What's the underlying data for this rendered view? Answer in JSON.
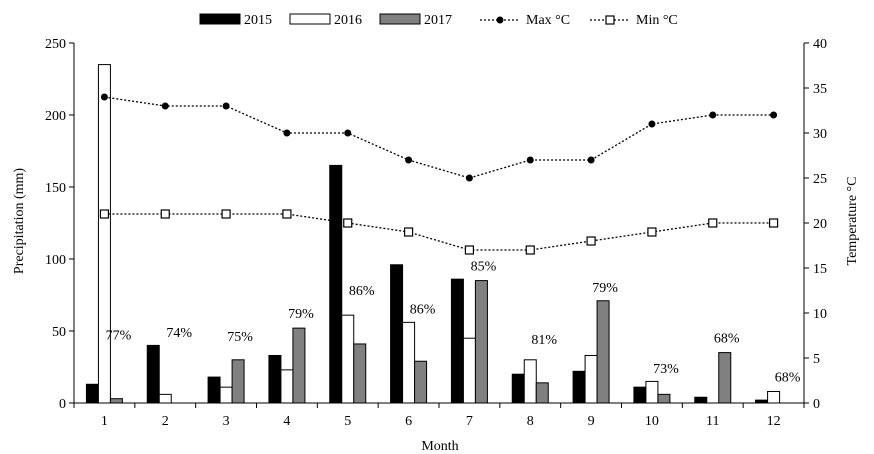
{
  "chart_data": {
    "type": "bar",
    "categories": [
      "1",
      "2",
      "3",
      "4",
      "5",
      "6",
      "7",
      "8",
      "9",
      "10",
      "11",
      "12"
    ],
    "xlabel": "Month",
    "ylabel": "Precipitation (mm)",
    "y2label": "Temperature °C",
    "ylim": [
      0,
      250
    ],
    "y2lim": [
      0,
      40
    ],
    "yticks": [
      "0",
      "50",
      "100",
      "150",
      "200",
      "250"
    ],
    "y2ticks": [
      "0",
      "5",
      "10",
      "15",
      "20",
      "25",
      "30",
      "35",
      "40"
    ],
    "legend_position": "top",
    "series": [
      {
        "name": "2015",
        "kind": "bar",
        "color": "#000000",
        "values": [
          13,
          40,
          18,
          33,
          165,
          96,
          86,
          20,
          22,
          11,
          4,
          2
        ]
      },
      {
        "name": "2016",
        "kind": "bar",
        "color": "#ffffff",
        "values": [
          235,
          6,
          11,
          23,
          61,
          56,
          45,
          30,
          33,
          15,
          0,
          8
        ]
      },
      {
        "name": "2017",
        "kind": "bar",
        "color": "#808080",
        "values": [
          3,
          0,
          30,
          52,
          41,
          29,
          85,
          14,
          71,
          6,
          35,
          0
        ]
      }
    ],
    "lines": [
      {
        "name": "Max °C",
        "marker": "dot",
        "axis": "right",
        "values": [
          34,
          33,
          33,
          30,
          30,
          27,
          25,
          27,
          27,
          31,
          32,
          32
        ]
      },
      {
        "name": "Min °C",
        "marker": "square",
        "axis": "right",
        "values": [
          21,
          21,
          21,
          21,
          20,
          19,
          17,
          17,
          18,
          19,
          20,
          20
        ]
      }
    ],
    "annotations": [
      {
        "month": 1,
        "text": "77%",
        "y": 44
      },
      {
        "month": 2,
        "text": "74%",
        "y": 46
      },
      {
        "month": 3,
        "text": "75%",
        "y": 43
      },
      {
        "month": 4,
        "text": "79%",
        "y": 59
      },
      {
        "month": 5,
        "text": "86%",
        "y": 75
      },
      {
        "month": 6,
        "text": "86%",
        "y": 62
      },
      {
        "month": 7,
        "text": "85%",
        "y": 92
      },
      {
        "month": 8,
        "text": "81%",
        "y": 41
      },
      {
        "month": 9,
        "text": "79%",
        "y": 77
      },
      {
        "month": 10,
        "text": "73%",
        "y": 21
      },
      {
        "month": 11,
        "text": "68%",
        "y": 42
      },
      {
        "month": 12,
        "text": "68%",
        "y": 15
      }
    ]
  }
}
